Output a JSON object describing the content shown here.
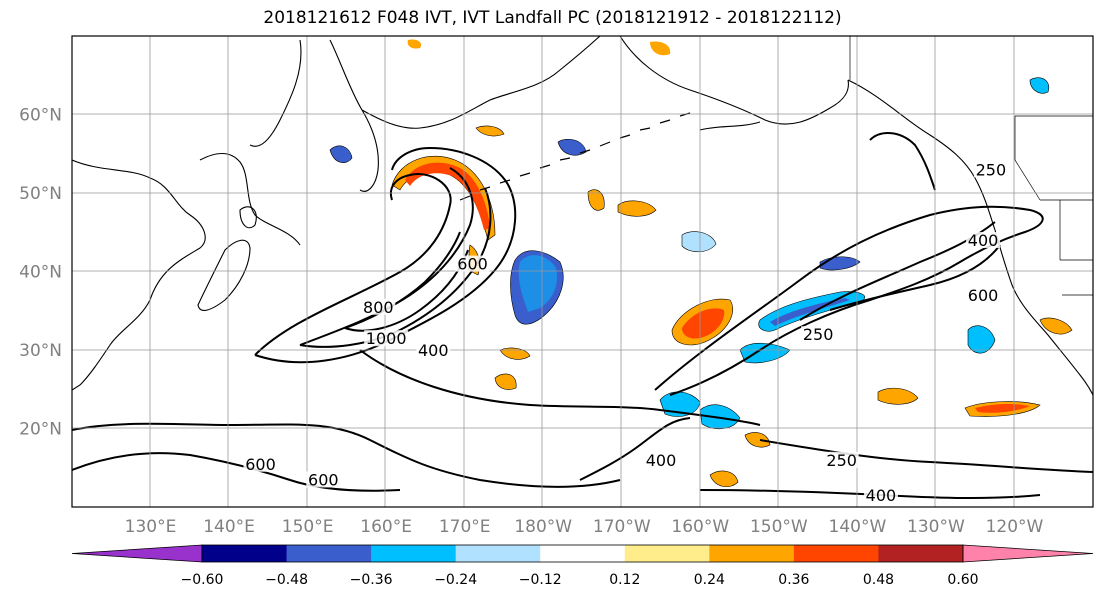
{
  "title": "2018121612 F048 IVT, IVT Landfall PC (2018121912 - 2018122112)",
  "lon_labels": [
    "130°E",
    "140°E",
    "150°E",
    "160°E",
    "170°E",
    "180°W",
    "170°W",
    "160°W",
    "150°W",
    "140°W",
    "130°W",
    "120°W"
  ],
  "lat_labels": [
    "60°N",
    "50°N",
    "40°N",
    "30°N",
    "20°N"
  ],
  "contour_labels": [
    {
      "text": "800",
      "lon": 159,
      "lat": 35
    },
    {
      "text": "1000",
      "lon": 160,
      "lat": 31
    },
    {
      "text": "600",
      "lon": 171,
      "lat": 40.5
    },
    {
      "text": "400",
      "lon": 166,
      "lat": 29.5
    },
    {
      "text": "600",
      "lon": 144,
      "lat": 15
    },
    {
      "text": "600",
      "lon": 152,
      "lat": 13
    },
    {
      "text": "400",
      "lon": 195,
      "lat": 15.5
    },
    {
      "text": "250",
      "lon": 215,
      "lat": 31.5
    },
    {
      "text": "250",
      "lon": 218,
      "lat": 15.5
    },
    {
      "text": "400",
      "lon": 223,
      "lat": 11
    },
    {
      "text": "400",
      "lon": 236,
      "lat": 43.5
    },
    {
      "text": "600",
      "lon": 236,
      "lat": 36.5
    },
    {
      "text": "250",
      "lon": 237,
      "lat": 52.5
    }
  ],
  "colorbar": {
    "colors": [
      "#9932CC",
      "#00008B",
      "#3A5FCD",
      "#00BFFF",
      "#B0E2FF",
      "#FFFFFF",
      "#FFEC8B",
      "#FFA500",
      "#FF4500",
      "#B22222",
      "#FF82AB"
    ],
    "ticks": [
      "−0.60",
      "−0.48",
      "−0.36",
      "−0.24",
      "−0.12",
      "0.12",
      "0.24",
      "0.36",
      "0.48",
      "0.60"
    ]
  },
  "map_extent": {
    "lon_min": 120,
    "lon_max": 250,
    "lat_min": 10,
    "lat_max": 70
  }
}
